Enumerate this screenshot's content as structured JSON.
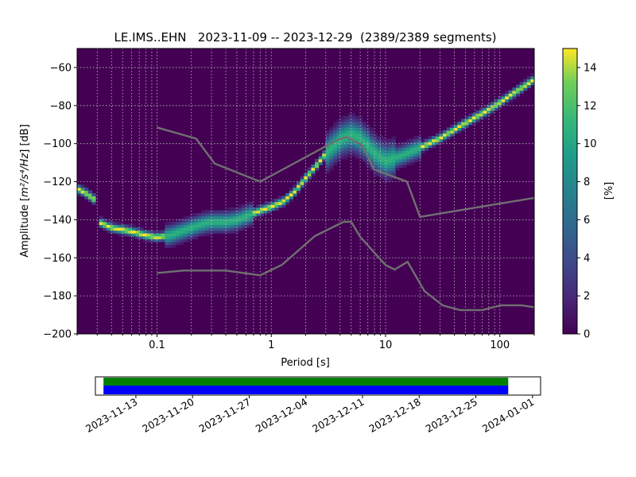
{
  "chart_data": {
    "type": "heatmap",
    "title": "LE.IMS..EHN   2023-11-09 -- 2023-12-29  (2389/2389 segments)",
    "xlabel": "Period [s]",
    "ylabel_prefix": "Amplitude [",
    "ylabel_math": "m²/s⁴/Hz",
    "ylabel_suffix": "] [dB]",
    "x_scale": "log",
    "xlim": [
      0.02,
      200
    ],
    "ylim": [
      -200,
      -50
    ],
    "x_ticks": [
      {
        "value": 0.1,
        "label": "0.1"
      },
      {
        "value": 1,
        "label": "1"
      },
      {
        "value": 10,
        "label": "10"
      },
      {
        "value": 100,
        "label": "100"
      }
    ],
    "y_ticks": [
      {
        "value": -60,
        "label": "−60"
      },
      {
        "value": -80,
        "label": "−80"
      },
      {
        "value": -100,
        "label": "−100"
      },
      {
        "value": -120,
        "label": "−120"
      },
      {
        "value": -140,
        "label": "−140"
      },
      {
        "value": -160,
        "label": "−160"
      },
      {
        "value": -180,
        "label": "−180"
      },
      {
        "value": -200,
        "label": "−200"
      }
    ],
    "grid": true,
    "colormap": "viridis",
    "colorbar": {
      "label": "[%]",
      "range": [
        0,
        15
      ],
      "ticks": [
        {
          "value": 0,
          "label": "0"
        },
        {
          "value": 2,
          "label": "2"
        },
        {
          "value": 4,
          "label": "4"
        },
        {
          "value": 6,
          "label": "6"
        },
        {
          "value": 8,
          "label": "8"
        },
        {
          "value": 10,
          "label": "10"
        },
        {
          "value": 12,
          "label": "12"
        },
        {
          "value": 14,
          "label": "14"
        }
      ]
    },
    "psd_mode": [
      [
        0.021,
        -124
      ],
      [
        0.024,
        -126
      ],
      [
        0.028,
        -129
      ],
      [
        0.031,
        -141
      ],
      [
        0.04,
        -144
      ],
      [
        0.06,
        -146
      ],
      [
        0.08,
        -148
      ],
      [
        0.1,
        -149
      ],
      [
        0.13,
        -148
      ],
      [
        0.18,
        -145
      ],
      [
        0.25,
        -142
      ],
      [
        0.3,
        -141
      ],
      [
        0.4,
        -141
      ],
      [
        0.5,
        -140
      ],
      [
        0.6,
        -138
      ],
      [
        0.8,
        -135
      ],
      [
        1.0,
        -133
      ],
      [
        1.3,
        -130
      ],
      [
        1.6,
        -125
      ],
      [
        2.0,
        -118
      ],
      [
        2.5,
        -111
      ],
      [
        3.0,
        -105
      ],
      [
        3.5,
        -101
      ],
      [
        4.2,
        -97
      ],
      [
        5.0,
        -95
      ],
      [
        6.0,
        -97
      ],
      [
        7.0,
        -101
      ],
      [
        8.0,
        -105
      ],
      [
        10.0,
        -109
      ],
      [
        14.0,
        -106
      ],
      [
        20.0,
        -102
      ],
      [
        30.0,
        -97
      ],
      [
        50.0,
        -89
      ],
      [
        80.0,
        -82
      ],
      [
        120.0,
        -75
      ],
      [
        160.0,
        -70
      ],
      [
        200.0,
        -66
      ]
    ],
    "psd_gap": [
      0.029,
      0.031
    ],
    "noise_models": [
      {
        "x": [
          0.1,
          0.22,
          0.32,
          0.8,
          3.8,
          4.6,
          6.3,
          7.9,
          15.4,
          20,
          200
        ],
        "y": [
          -91.5,
          -97.4,
          -110.5,
          -120,
          -98,
          -96.5,
          -101,
          -113.5,
          -120,
          -138.5,
          -128.5
        ]
      },
      {
        "x": [
          0.1,
          0.17,
          0.4,
          0.8,
          1.24,
          2.4,
          4.3,
          5.0,
          6.0,
          10.0,
          12.0,
          15.6,
          21.9,
          31.6,
          45,
          70,
          101,
          154,
          200
        ],
        "y": [
          -168,
          -166.7,
          -166.7,
          -169.2,
          -163.7,
          -148.6,
          -141.1,
          -141.1,
          -149,
          -163.8,
          -166.2,
          -162.1,
          -177.5,
          -185,
          -187.5,
          -187.5,
          -185,
          -185,
          -186
        ]
      }
    ],
    "timeline": {
      "tick_labels": [
        "2023-11-13",
        "2023-11-20",
        "2023-11-27",
        "2023-12-04",
        "2023-12-11",
        "2023-12-18",
        "2023-12-25",
        "2024-01-01"
      ],
      "start": "2023-11-09",
      "end": "2023-12-29",
      "range_start": "2023-11-08",
      "range_end": "2024-01-02",
      "colors": {
        "coverage": "#008000",
        "data": "#0000ff"
      }
    }
  }
}
